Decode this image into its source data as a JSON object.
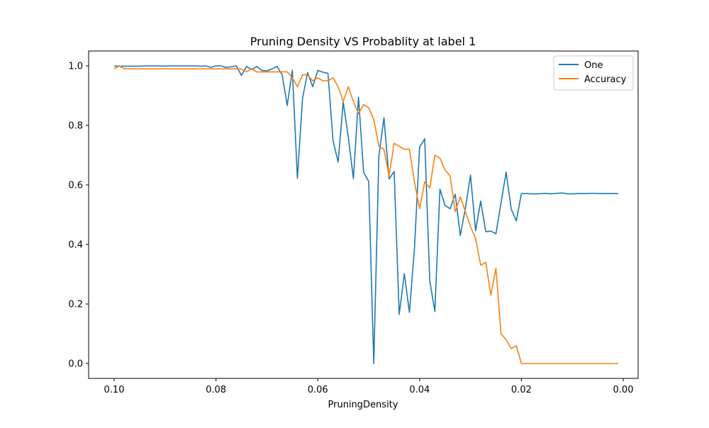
{
  "chart_data": {
    "type": "line",
    "title": "Pruning Density VS Probablity at label 1",
    "xlabel": "PruningDensity",
    "ylabel": "",
    "xlim": [
      0.1,
      0.0
    ],
    "xaxis_inverted": true,
    "ylim": [
      0.0,
      1.0
    ],
    "grid": false,
    "legend_position": "top-right",
    "xticks": [
      "0.10",
      "0.08",
      "0.06",
      "0.04",
      "0.02",
      "0.00"
    ],
    "xtick_values": [
      0.1,
      0.08,
      0.06,
      0.04,
      0.02,
      0.0
    ],
    "yticks": [
      "0.0",
      "0.2",
      "0.4",
      "0.6",
      "0.8",
      "1.0"
    ],
    "ytick_values": [
      0.0,
      0.2,
      0.4,
      0.6,
      0.8,
      1.0
    ],
    "series": [
      {
        "name": "One",
        "color": "#1f77b4",
        "points": [
          [
            0.1,
            1.0
          ],
          [
            0.099,
            0.999
          ],
          [
            0.098,
            0.999
          ],
          [
            0.097,
            0.999
          ],
          [
            0.096,
            0.999
          ],
          [
            0.095,
            0.999
          ],
          [
            0.094,
            1.0
          ],
          [
            0.093,
            1.0
          ],
          [
            0.092,
            1.0
          ],
          [
            0.091,
            1.0
          ],
          [
            0.09,
            0.999
          ],
          [
            0.089,
            1.0
          ],
          [
            0.088,
            1.0
          ],
          [
            0.087,
            1.0
          ],
          [
            0.086,
            1.0
          ],
          [
            0.085,
            1.0
          ],
          [
            0.084,
            1.0
          ],
          [
            0.083,
            0.999
          ],
          [
            0.082,
            1.0
          ],
          [
            0.081,
            0.995
          ],
          [
            0.08,
            1.0
          ],
          [
            0.079,
            1.0
          ],
          [
            0.078,
            0.995
          ],
          [
            0.077,
            0.997
          ],
          [
            0.076,
            1.0
          ],
          [
            0.075,
            0.968
          ],
          [
            0.074,
            0.998
          ],
          [
            0.073,
            0.988
          ],
          [
            0.072,
            0.998
          ],
          [
            0.071,
            0.985
          ],
          [
            0.07,
            0.983
          ],
          [
            0.069,
            0.99
          ],
          [
            0.068,
            0.998
          ],
          [
            0.067,
            0.97
          ],
          [
            0.066,
            0.867
          ],
          [
            0.065,
            0.985
          ],
          [
            0.064,
            0.622
          ],
          [
            0.063,
            0.89
          ],
          [
            0.062,
            0.978
          ],
          [
            0.061,
            0.93
          ],
          [
            0.06,
            0.985
          ],
          [
            0.059,
            0.979
          ],
          [
            0.058,
            0.975
          ],
          [
            0.057,
            0.748
          ],
          [
            0.056,
            0.677
          ],
          [
            0.055,
            0.878
          ],
          [
            0.054,
            0.76
          ],
          [
            0.053,
            0.621
          ],
          [
            0.052,
            0.895
          ],
          [
            0.051,
            0.643
          ],
          [
            0.05,
            0.612
          ],
          [
            0.049,
            0.0
          ],
          [
            0.048,
            0.697
          ],
          [
            0.047,
            0.826
          ],
          [
            0.046,
            0.62
          ],
          [
            0.045,
            0.645
          ],
          [
            0.044,
            0.165
          ],
          [
            0.043,
            0.302
          ],
          [
            0.042,
            0.172
          ],
          [
            0.041,
            0.388
          ],
          [
            0.04,
            0.727
          ],
          [
            0.039,
            0.755
          ],
          [
            0.038,
            0.278
          ],
          [
            0.037,
            0.175
          ],
          [
            0.036,
            0.586
          ],
          [
            0.035,
            0.531
          ],
          [
            0.034,
            0.52
          ],
          [
            0.033,
            0.569
          ],
          [
            0.032,
            0.43
          ],
          [
            0.031,
            0.522
          ],
          [
            0.03,
            0.633
          ],
          [
            0.029,
            0.446
          ],
          [
            0.028,
            0.546
          ],
          [
            0.027,
            0.443
          ],
          [
            0.026,
            0.445
          ],
          [
            0.025,
            0.436
          ],
          [
            0.024,
            0.54
          ],
          [
            0.023,
            0.643
          ],
          [
            0.022,
            0.519
          ],
          [
            0.021,
            0.479
          ],
          [
            0.02,
            0.571
          ],
          [
            0.019,
            0.571
          ],
          [
            0.018,
            0.57
          ],
          [
            0.017,
            0.57
          ],
          [
            0.016,
            0.571
          ],
          [
            0.015,
            0.571
          ],
          [
            0.014,
            0.57
          ],
          [
            0.013,
            0.572
          ],
          [
            0.012,
            0.573
          ],
          [
            0.011,
            0.57
          ],
          [
            0.01,
            0.57
          ],
          [
            0.009,
            0.571
          ],
          [
            0.008,
            0.571
          ],
          [
            0.007,
            0.571
          ],
          [
            0.006,
            0.572
          ],
          [
            0.005,
            0.571
          ],
          [
            0.004,
            0.571
          ],
          [
            0.003,
            0.571
          ],
          [
            0.002,
            0.571
          ],
          [
            0.001,
            0.571
          ]
        ]
      },
      {
        "name": "Accuracy",
        "color": "#ff7f0e",
        "points": [
          [
            0.1,
            0.99
          ],
          [
            0.099,
            1.0
          ],
          [
            0.098,
            0.99
          ],
          [
            0.097,
            0.99
          ],
          [
            0.096,
            0.99
          ],
          [
            0.095,
            0.99
          ],
          [
            0.094,
            0.99
          ],
          [
            0.093,
            0.99
          ],
          [
            0.092,
            0.99
          ],
          [
            0.091,
            0.99
          ],
          [
            0.09,
            0.99
          ],
          [
            0.089,
            0.99
          ],
          [
            0.088,
            0.99
          ],
          [
            0.087,
            0.99
          ],
          [
            0.086,
            0.99
          ],
          [
            0.085,
            0.99
          ],
          [
            0.084,
            0.99
          ],
          [
            0.083,
            0.99
          ],
          [
            0.082,
            0.99
          ],
          [
            0.081,
            0.99
          ],
          [
            0.08,
            0.99
          ],
          [
            0.079,
            0.99
          ],
          [
            0.078,
            0.99
          ],
          [
            0.077,
            0.99
          ],
          [
            0.076,
            0.99
          ],
          [
            0.075,
            0.99
          ],
          [
            0.074,
            0.98
          ],
          [
            0.073,
            0.99
          ],
          [
            0.072,
            0.98
          ],
          [
            0.071,
            0.98
          ],
          [
            0.07,
            0.98
          ],
          [
            0.069,
            0.98
          ],
          [
            0.068,
            0.98
          ],
          [
            0.067,
            0.98
          ],
          [
            0.066,
            0.98
          ],
          [
            0.065,
            0.96
          ],
          [
            0.064,
            0.93
          ],
          [
            0.063,
            0.97
          ],
          [
            0.062,
            0.97
          ],
          [
            0.061,
            0.95
          ],
          [
            0.06,
            0.96
          ],
          [
            0.059,
            0.95
          ],
          [
            0.058,
            0.95
          ],
          [
            0.057,
            0.96
          ],
          [
            0.056,
            0.93
          ],
          [
            0.055,
            0.88
          ],
          [
            0.054,
            0.93
          ],
          [
            0.053,
            0.88
          ],
          [
            0.052,
            0.84
          ],
          [
            0.051,
            0.87
          ],
          [
            0.05,
            0.86
          ],
          [
            0.049,
            0.82
          ],
          [
            0.048,
            0.73
          ],
          [
            0.047,
            0.72
          ],
          [
            0.046,
            0.63
          ],
          [
            0.045,
            0.74
          ],
          [
            0.044,
            0.73
          ],
          [
            0.043,
            0.72
          ],
          [
            0.042,
            0.72
          ],
          [
            0.041,
            0.61
          ],
          [
            0.04,
            0.52
          ],
          [
            0.039,
            0.61
          ],
          [
            0.038,
            0.59
          ],
          [
            0.037,
            0.7
          ],
          [
            0.036,
            0.69
          ],
          [
            0.035,
            0.65
          ],
          [
            0.034,
            0.63
          ],
          [
            0.033,
            0.51
          ],
          [
            0.032,
            0.56
          ],
          [
            0.031,
            0.51
          ],
          [
            0.03,
            0.46
          ],
          [
            0.029,
            0.42
          ],
          [
            0.028,
            0.33
          ],
          [
            0.027,
            0.34
          ],
          [
            0.026,
            0.23
          ],
          [
            0.025,
            0.32
          ],
          [
            0.024,
            0.1
          ],
          [
            0.023,
            0.08
          ],
          [
            0.022,
            0.05
          ],
          [
            0.021,
            0.06
          ],
          [
            0.02,
            0.0
          ],
          [
            0.019,
            0.0
          ],
          [
            0.018,
            0.0
          ],
          [
            0.017,
            0.0
          ],
          [
            0.016,
            0.0
          ],
          [
            0.015,
            0.0
          ],
          [
            0.014,
            0.0
          ],
          [
            0.013,
            0.0
          ],
          [
            0.012,
            0.0
          ],
          [
            0.011,
            0.0
          ],
          [
            0.01,
            0.0
          ],
          [
            0.009,
            0.0
          ],
          [
            0.008,
            0.0
          ],
          [
            0.007,
            0.0
          ],
          [
            0.006,
            0.0
          ],
          [
            0.005,
            0.0
          ],
          [
            0.004,
            0.0
          ],
          [
            0.003,
            0.0
          ],
          [
            0.002,
            0.0
          ],
          [
            0.001,
            0.0
          ]
        ]
      }
    ]
  }
}
